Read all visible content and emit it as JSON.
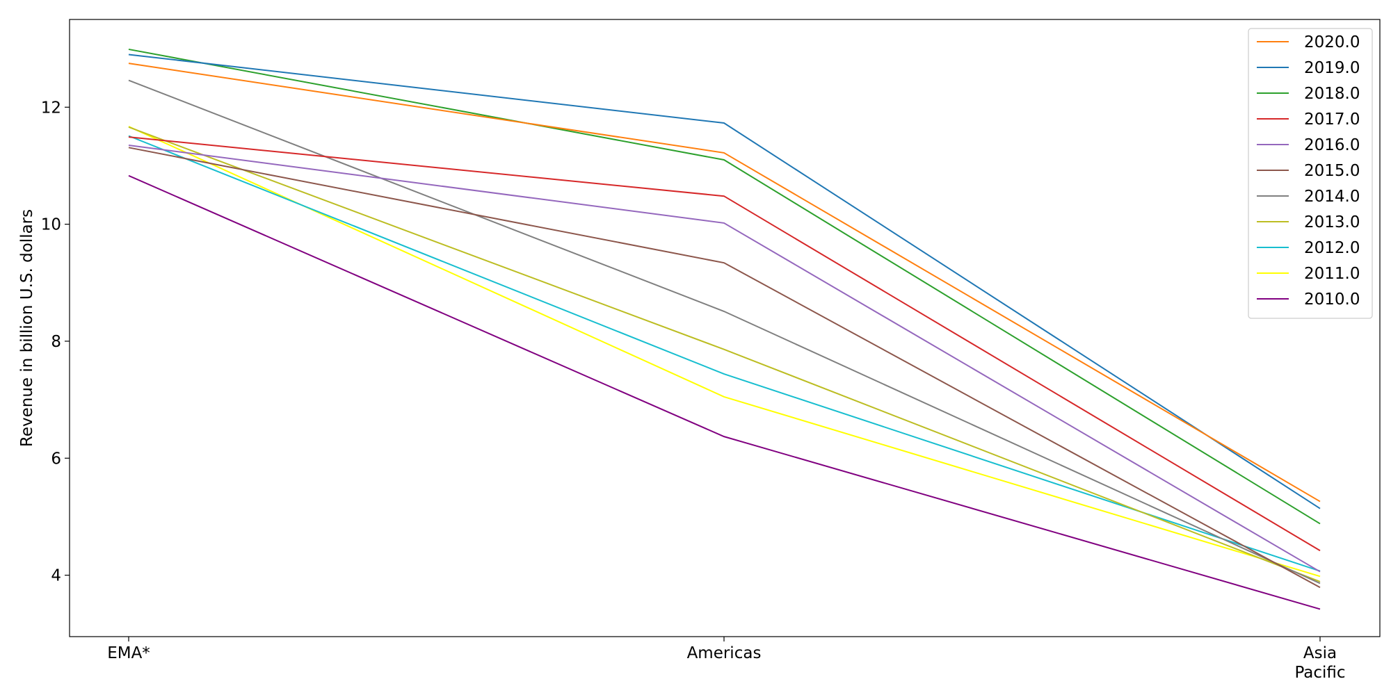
{
  "chart_data": {
    "type": "line",
    "title": "",
    "xlabel": "",
    "ylabel": "Revenue in billion U.S. dollars",
    "categories": [
      [
        "EMA*"
      ],
      [
        "Americas"
      ],
      [
        "Asia",
        "Pacific"
      ]
    ],
    "ylim": [
      2.95,
      13.5
    ],
    "yticks": [
      4,
      6,
      8,
      10,
      12
    ],
    "grid": false,
    "legend_position": "top-right",
    "series": [
      {
        "name": "2020.0",
        "color": "#ff7f0e",
        "values": [
          12.75,
          11.22,
          5.26
        ]
      },
      {
        "name": "2019.0",
        "color": "#1f77b4",
        "values": [
          12.9,
          11.73,
          5.14
        ]
      },
      {
        "name": "2018.0",
        "color": "#2ca02c",
        "values": [
          12.99,
          11.1,
          4.88
        ]
      },
      {
        "name": "2017.0",
        "color": "#d62728",
        "values": [
          11.49,
          10.48,
          4.42
        ]
      },
      {
        "name": "2016.0",
        "color": "#9467bd",
        "values": [
          11.35,
          10.02,
          4.06
        ]
      },
      {
        "name": "2015.0",
        "color": "#8c564b",
        "values": [
          11.31,
          9.34,
          3.79
        ]
      },
      {
        "name": "2014.0",
        "color": "#7f7f7f",
        "values": [
          12.46,
          8.51,
          3.86
        ]
      },
      {
        "name": "2013.0",
        "color": "#bcbd22",
        "values": [
          11.66,
          7.86,
          3.89
        ]
      },
      {
        "name": "2012.0",
        "color": "#17becf",
        "values": [
          11.51,
          7.44,
          4.07
        ]
      },
      {
        "name": "2011.0",
        "color": "#ffff00",
        "values": [
          11.67,
          7.05,
          3.98
        ]
      },
      {
        "name": "2010.0",
        "color": "#800080",
        "values": [
          10.83,
          6.37,
          3.42
        ]
      }
    ]
  }
}
